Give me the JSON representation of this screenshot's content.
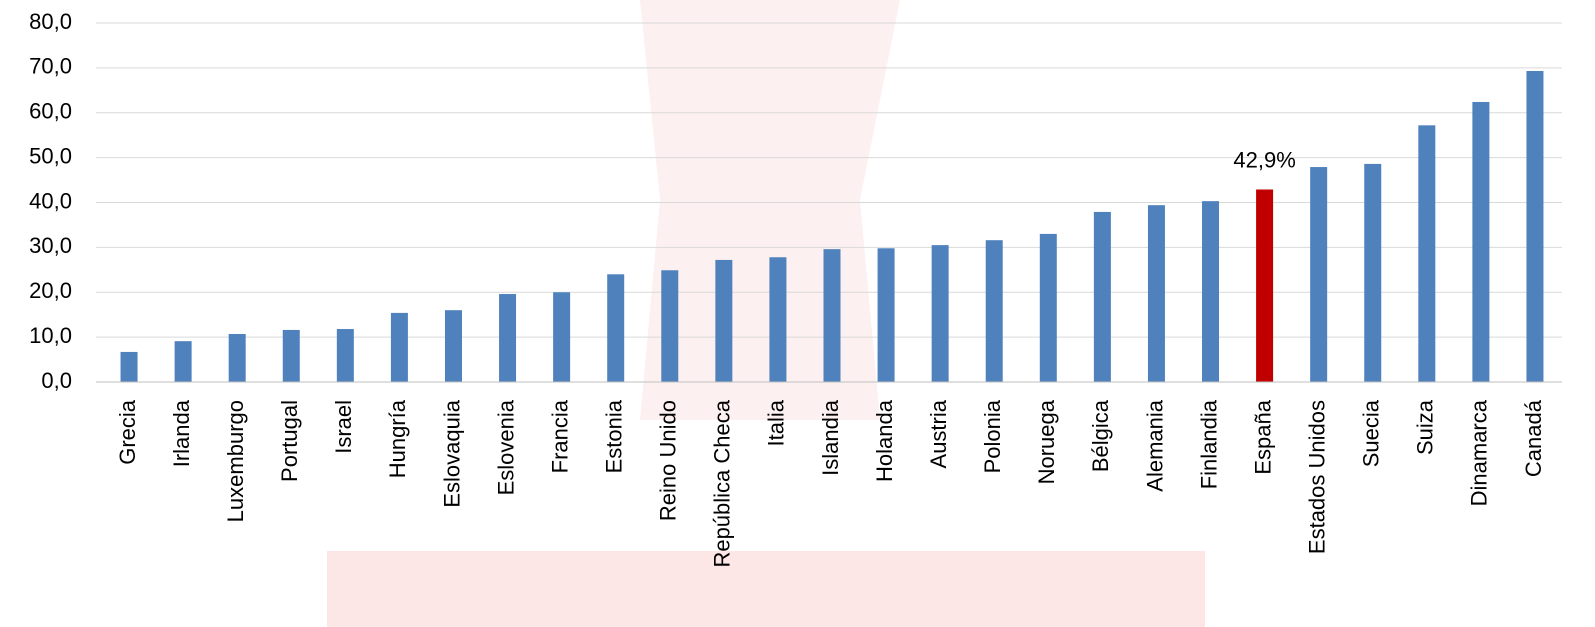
{
  "chart_data": {
    "type": "bar",
    "categories": [
      "Grecia",
      "Irlanda",
      "Luxemburgo",
      "Portugal",
      "Israel",
      "Hungría",
      "Eslovaquia",
      "Eslovenia",
      "Francia",
      "Estonia",
      "Reino Unido",
      "República Checa",
      "Italia",
      "Islandia",
      "Holanda",
      "Austria",
      "Polonia",
      "Noruega",
      "Bélgica",
      "Alemania",
      "Finlandia",
      "España",
      "Estados Unidos",
      "Suecia",
      "Suiza",
      "Dinamarca",
      "Canadá"
    ],
    "values": [
      6.7,
      9.1,
      10.7,
      11.6,
      11.8,
      15.4,
      16.0,
      19.6,
      20.0,
      24.0,
      24.9,
      27.2,
      27.8,
      29.6,
      29.8,
      30.5,
      31.6,
      33.0,
      37.9,
      39.4,
      40.3,
      42.9,
      47.9,
      48.6,
      57.2,
      62.4,
      69.3
    ],
    "value_labels": [
      null,
      null,
      null,
      null,
      null,
      null,
      null,
      null,
      null,
      null,
      null,
      null,
      null,
      null,
      null,
      null,
      null,
      null,
      null,
      null,
      null,
      "42,9%",
      null,
      null,
      null,
      null,
      null
    ],
    "colors": [
      "#4f81bd",
      "#4f81bd",
      "#4f81bd",
      "#4f81bd",
      "#4f81bd",
      "#4f81bd",
      "#4f81bd",
      "#4f81bd",
      "#4f81bd",
      "#4f81bd",
      "#4f81bd",
      "#4f81bd",
      "#4f81bd",
      "#4f81bd",
      "#4f81bd",
      "#4f81bd",
      "#4f81bd",
      "#4f81bd",
      "#4f81bd",
      "#4f81bd",
      "#4f81bd",
      "#c00000",
      "#4f81bd",
      "#4f81bd",
      "#4f81bd",
      "#4f81bd",
      "#4f81bd"
    ],
    "ylim": [
      0,
      80
    ],
    "yticks": [
      {
        "value": 0,
        "label": "0,0"
      },
      {
        "value": 10,
        "label": "10,0"
      },
      {
        "value": 20,
        "label": "20,0"
      },
      {
        "value": 30,
        "label": "30,0"
      },
      {
        "value": 40,
        "label": "40,0"
      },
      {
        "value": 50,
        "label": "50,0"
      },
      {
        "value": 60,
        "label": "60,0"
      },
      {
        "value": 70,
        "label": "70,0"
      },
      {
        "value": 80,
        "label": "80,0"
      }
    ],
    "grid": true
  }
}
